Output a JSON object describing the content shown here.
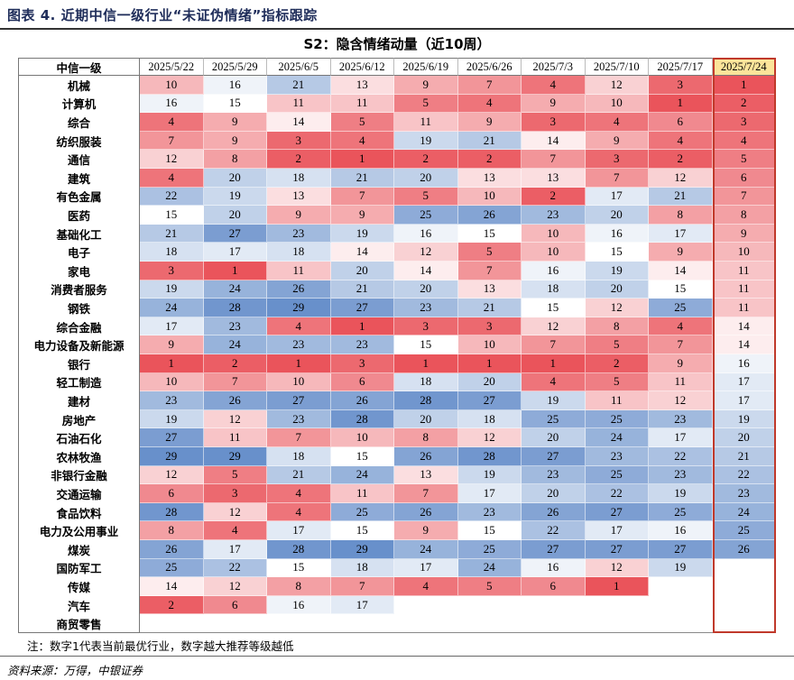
{
  "figure_title": "图表 4. 近期中信一级行业“未证伪情绪”指标跟踪",
  "note": "注：数字1代表当前最优行业，数字越大推荐等级越低",
  "source": "资料来源：万得，中银证券",
  "colors": {
    "best": "#e8454d",
    "neutral": "#ffffff",
    "worst": "#5b86c6",
    "highlight_border": "#c0392b",
    "highlight_header": "#fbe49a"
  },
  "chart_data": {
    "type": "table",
    "title": "S2：隐含情绪动量（近10周）",
    "row_header": "中信一级",
    "columns": [
      "2025/5/22",
      "2025/5/29",
      "2025/6/5",
      "2025/6/12",
      "2025/6/19",
      "2025/6/26",
      "2025/7/3",
      "2025/7/10",
      "2025/7/17",
      "2025/7/24"
    ],
    "highlighted_column": "2025/7/24",
    "rows": [
      {
        "industry": "机械",
        "values": [
          10,
          16,
          21,
          13,
          9,
          7,
          4,
          12,
          3,
          1
        ]
      },
      {
        "industry": "计算机",
        "values": [
          16,
          15,
          11,
          11,
          5,
          4,
          9,
          10,
          1,
          2
        ]
      },
      {
        "industry": "综合",
        "values": [
          4,
          9,
          14,
          5,
          11,
          9,
          3,
          4,
          6,
          3
        ]
      },
      {
        "industry": "纺织服装",
        "values": [
          7,
          9,
          3,
          4,
          19,
          21,
          14,
          9,
          4,
          4
        ]
      },
      {
        "industry": "通信",
        "values": [
          12,
          8,
          2,
          1,
          2,
          2,
          7,
          3,
          2,
          5
        ]
      },
      {
        "industry": "建筑",
        "values": [
          4,
          20,
          18,
          21,
          20,
          13,
          13,
          7,
          12,
          6
        ]
      },
      {
        "industry": "有色金属",
        "values": [
          22,
          19,
          13,
          7,
          5,
          10,
          2,
          17,
          21,
          7
        ]
      },
      {
        "industry": "医药",
        "values": [
          15,
          20,
          9,
          9,
          25,
          26,
          23,
          20,
          8,
          8
        ]
      },
      {
        "industry": "基础化工",
        "values": [
          21,
          27,
          23,
          19,
          16,
          15,
          10,
          16,
          17,
          9
        ]
      },
      {
        "industry": "电子",
        "values": [
          18,
          17,
          18,
          14,
          12,
          5,
          10,
          15,
          9,
          10
        ]
      },
      {
        "industry": "家电",
        "values": [
          3,
          1,
          11,
          20,
          14,
          7,
          16,
          19,
          14,
          11
        ]
      },
      {
        "industry": "消费者服务",
        "values": [
          19,
          24,
          26,
          21,
          20,
          13,
          18,
          20,
          15,
          11
        ]
      },
      {
        "industry": "钢铁",
        "values": [
          24,
          28,
          29,
          27,
          23,
          21,
          15,
          12,
          25,
          11
        ]
      },
      {
        "industry": "综合金融",
        "values": [
          17,
          23,
          4,
          1,
          3,
          3,
          12,
          8,
          4,
          14
        ]
      },
      {
        "industry": "电力设备及新能源",
        "values": [
          9,
          24,
          23,
          23,
          15,
          10,
          7,
          5,
          7,
          14
        ]
      },
      {
        "industry": "银行",
        "values": [
          1,
          2,
          1,
          3,
          1,
          1,
          1,
          2,
          9,
          16
        ]
      },
      {
        "industry": "轻工制造",
        "values": [
          10,
          7,
          10,
          6,
          18,
          20,
          4,
          5,
          11,
          17
        ]
      },
      {
        "industry": "建材",
        "values": [
          23,
          26,
          27,
          26,
          28,
          27,
          19,
          11,
          12,
          17
        ]
      },
      {
        "industry": "房地产",
        "values": [
          19,
          12,
          23,
          28,
          20,
          18,
          25,
          25,
          23,
          19
        ]
      },
      {
        "industry": "石油石化",
        "values": [
          27,
          11,
          7,
          10,
          8,
          12,
          20,
          24,
          17,
          20
        ]
      },
      {
        "industry": "农林牧渔",
        "values": [
          29,
          29,
          18,
          15,
          26,
          28,
          27,
          23,
          22,
          21
        ]
      },
      {
        "industry": "非银行金融",
        "values": [
          12,
          5,
          21,
          24,
          13,
          19,
          23,
          25,
          23,
          22
        ]
      },
      {
        "industry": "交通运输",
        "values": [
          6,
          3,
          4,
          11,
          7,
          17,
          20,
          22,
          19,
          23
        ]
      },
      {
        "industry": "食品饮料",
        "values": [
          28,
          12,
          4,
          25,
          26,
          23,
          26,
          27,
          25,
          24
        ]
      },
      {
        "industry": "电力及公用事业",
        "values": [
          8,
          4,
          17,
          15,
          9,
          15,
          22,
          17,
          16,
          25
        ]
      },
      {
        "industry": "煤炭",
        "values": [
          26,
          17,
          28,
          29,
          24,
          25,
          27,
          27,
          27,
          26
        ]
      },
      {
        "industry": "国防军工",
        "values": [
          25,
          22,
          15,
          18,
          17,
          24,
          16,
          12,
          19,
          null
        ]
      },
      {
        "industry": "传媒",
        "values": [
          14,
          12,
          8,
          7,
          4,
          5,
          6,
          1,
          null,
          null
        ]
      },
      {
        "industry": "汽车",
        "values": [
          2,
          6,
          16,
          17,
          null,
          null,
          null,
          null,
          null,
          null
        ]
      },
      {
        "industry": "商贸零售",
        "values": [
          null,
          null,
          null,
          null,
          null,
          null,
          null,
          null,
          null,
          null
        ]
      }
    ]
  }
}
